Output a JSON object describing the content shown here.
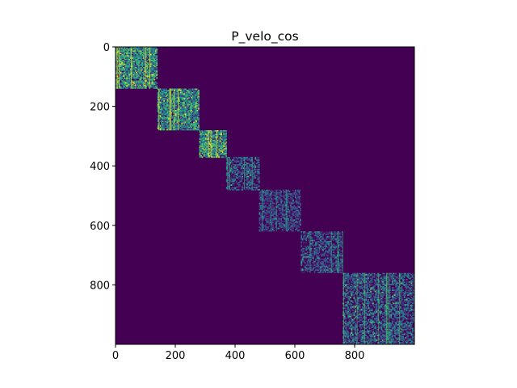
{
  "chart_data": {
    "type": "heatmap",
    "title": "P_velo_cos",
    "xlabel": "",
    "ylabel": "",
    "x_ticks": [
      0,
      200,
      400,
      600,
      800
    ],
    "y_ticks": [
      0,
      200,
      400,
      600,
      800
    ],
    "xlim": [
      0,
      1000
    ],
    "ylim": [
      1000,
      0
    ],
    "matrix_size": 1000,
    "colormap": "viridis",
    "background_color": "#440154",
    "grid": false,
    "legend": "none",
    "description_blocks": [
      {
        "start": 0,
        "end": 140,
        "intensity": 0.8
      },
      {
        "start": 140,
        "end": 280,
        "intensity": 0.75
      },
      {
        "start": 280,
        "end": 370,
        "intensity": 0.85
      },
      {
        "start": 370,
        "end": 480,
        "intensity": 0.45
      },
      {
        "start": 480,
        "end": 620,
        "intensity": 0.35
      },
      {
        "start": 620,
        "end": 760,
        "intensity": 0.4
      },
      {
        "start": 760,
        "end": 1000,
        "intensity": 0.5
      }
    ]
  }
}
